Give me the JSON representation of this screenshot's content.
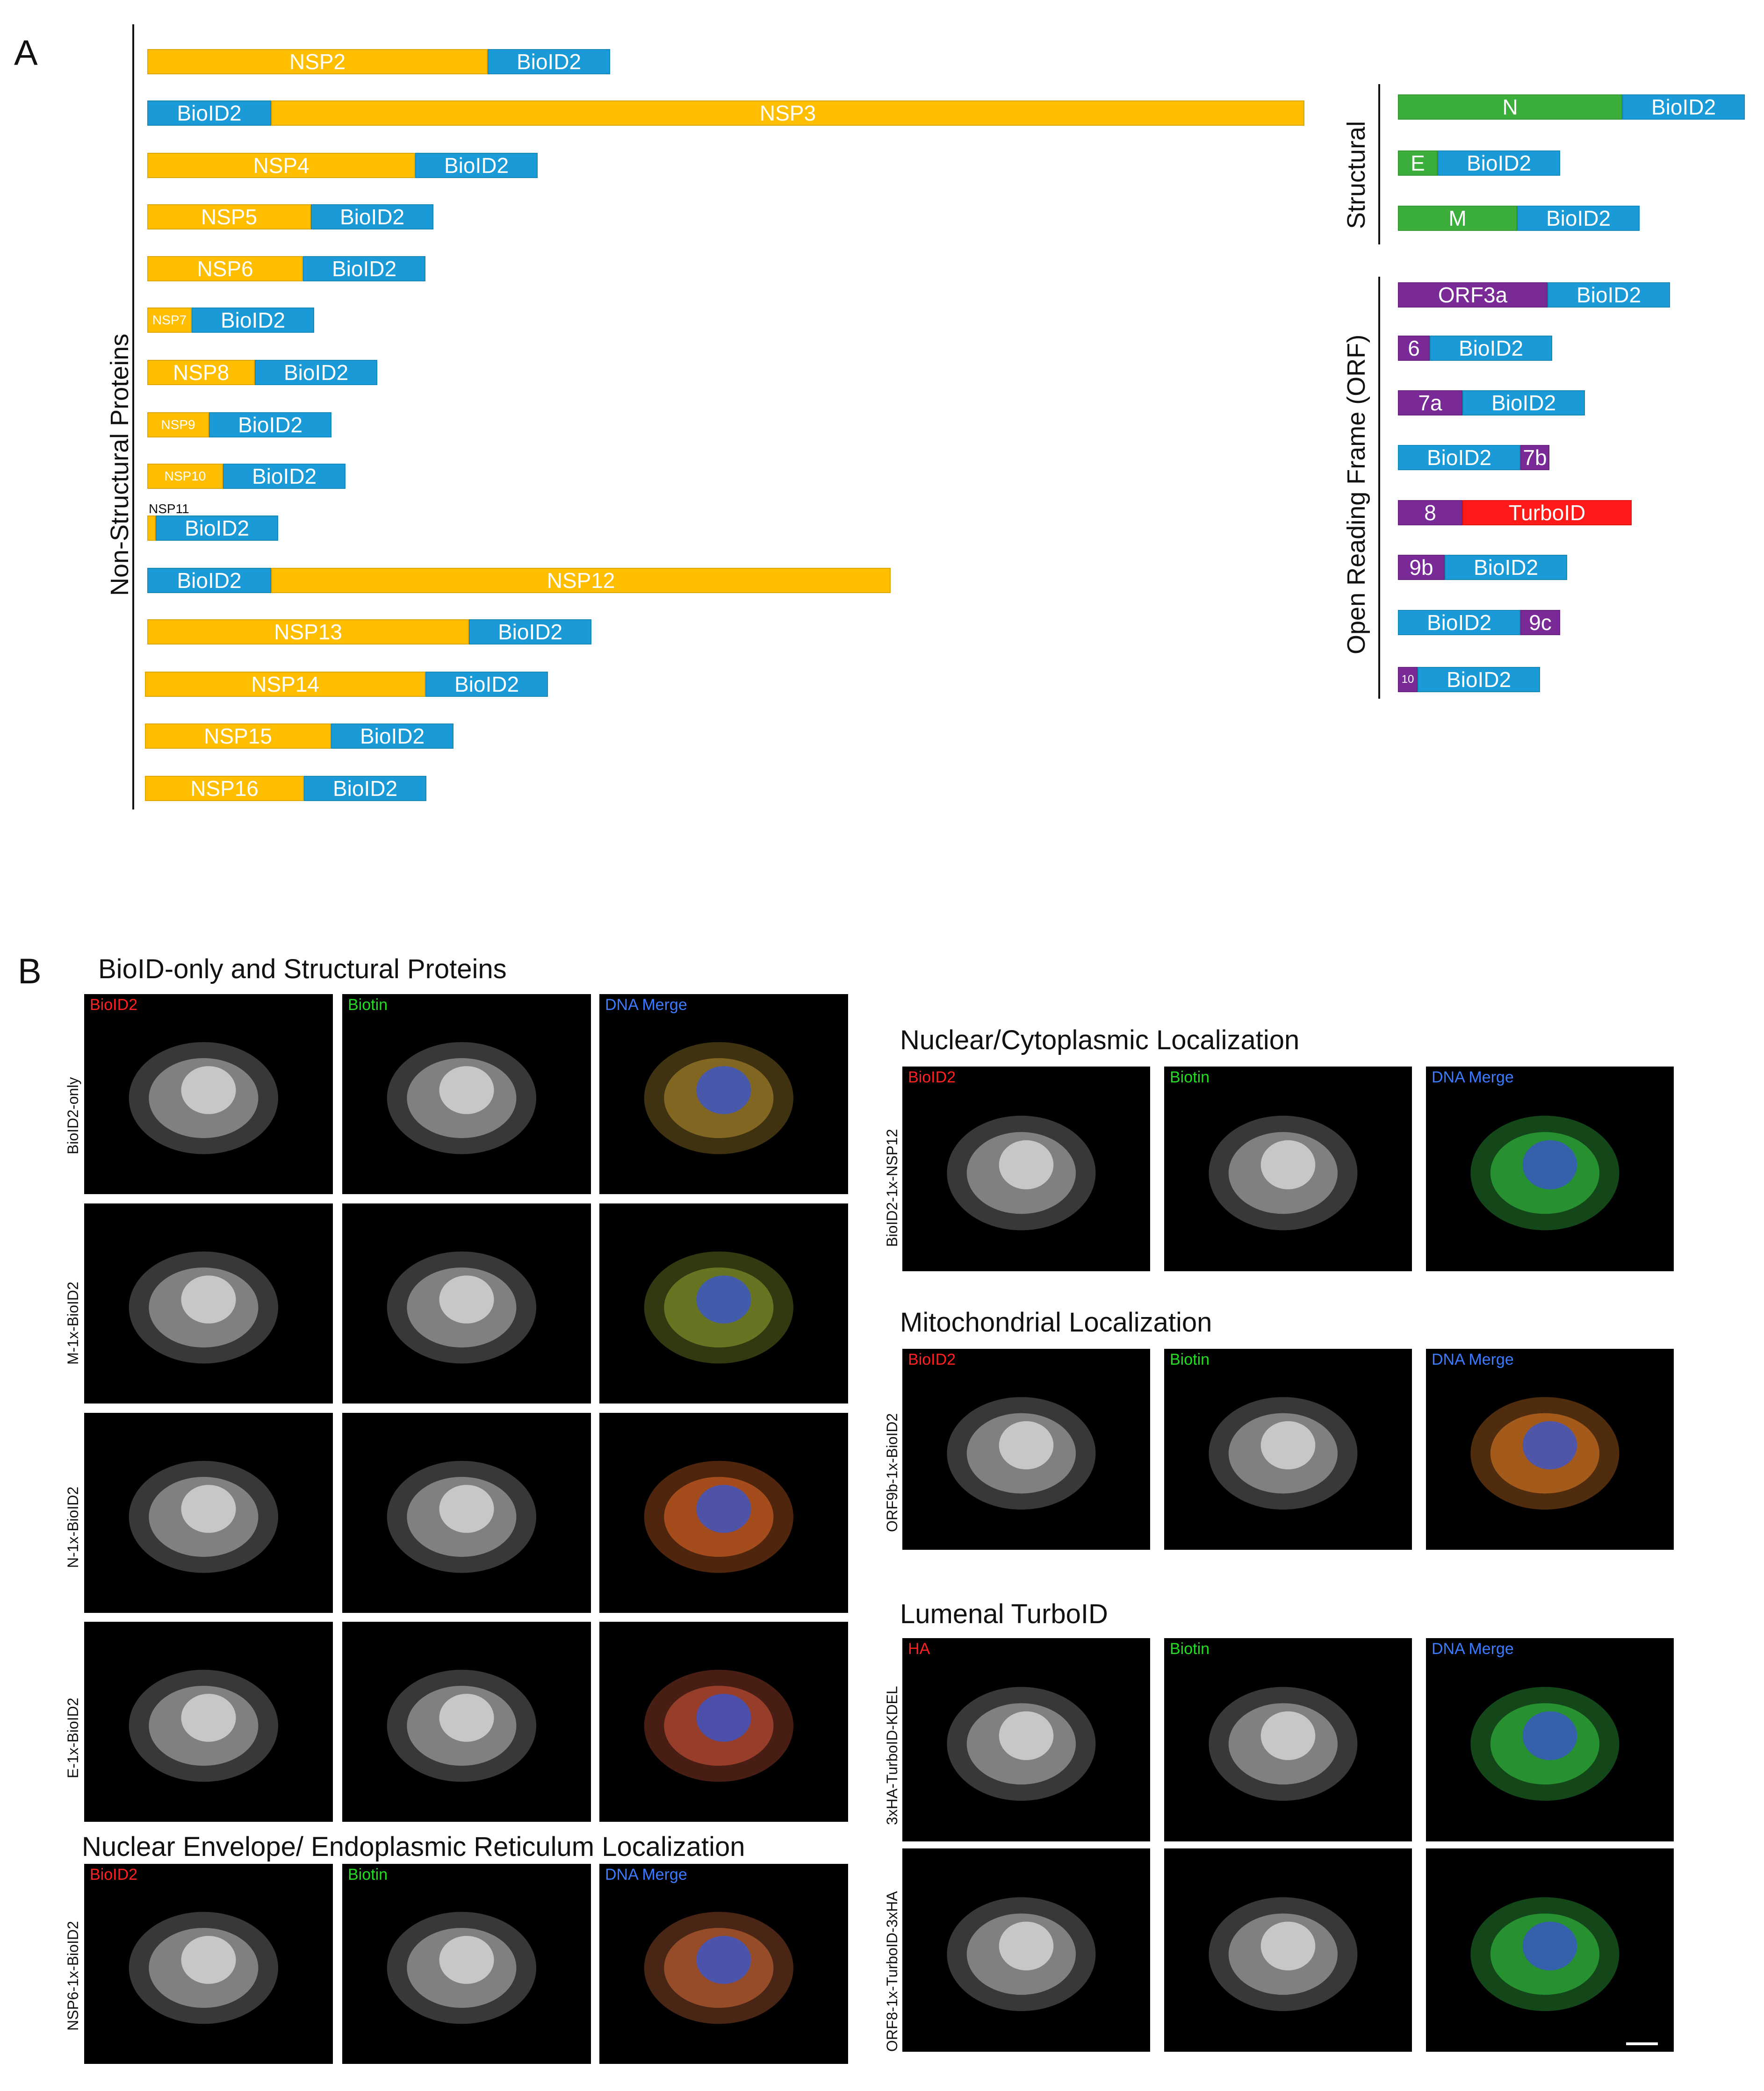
{
  "panel_a": {
    "letter": "A",
    "group_nonstructural": "Non-Structural Proteins",
    "group_structural": "Structural",
    "group_orf": "Open Reading Frame (ORF)",
    "nsp11_label": "NSP11",
    "nonstructural_constructs": [
      [
        "NSP2",
        "BioID2"
      ],
      [
        "BioID2",
        "NSP3"
      ],
      [
        "NSP4",
        "BioID2"
      ],
      [
        "NSP5",
        "BioID2"
      ],
      [
        "NSP6",
        "BioID2"
      ],
      [
        "NSP7",
        "BioID2"
      ],
      [
        "NSP8",
        "BioID2"
      ],
      [
        "NSP9",
        "BioID2"
      ],
      [
        "NSP10",
        "BioID2"
      ],
      [
        "",
        "BioID2"
      ],
      [
        "BioID2",
        "NSP12"
      ],
      [
        "NSP13",
        "BioID2"
      ],
      [
        "NSP14",
        "BioID2"
      ],
      [
        "NSP15",
        "BioID2"
      ],
      [
        "NSP16",
        "BioID2"
      ]
    ],
    "structural_constructs": [
      [
        "N",
        "BioID2"
      ],
      [
        "E",
        "BioID2"
      ],
      [
        "M",
        "BioID2"
      ]
    ],
    "orf_constructs": [
      [
        "ORF3a",
        "BioID2"
      ],
      [
        "6",
        "BioID2"
      ],
      [
        "7a",
        "BioID2"
      ],
      [
        "BioID2",
        "7b"
      ],
      [
        "8",
        "TurboID"
      ],
      [
        "9b",
        "BioID2"
      ],
      [
        "BioID2",
        "9c"
      ],
      [
        "10",
        "BioID2"
      ]
    ],
    "colors": {
      "nsp": "#ffbe00",
      "bioid2": "#1a9bd7",
      "structural": "#3cae3c",
      "orf": "#7a2a96",
      "turboid": "#ff1a1a"
    }
  },
  "panel_b": {
    "letter": "B",
    "heading_structural": "BioID-only and Structural Proteins",
    "heading_ne_er": "Nuclear Envelope/ Endoplasmic Reticulum Localization",
    "heading_nuc_cyto": "Nuclear/Cytoplasmic Localization",
    "heading_mito": "Mitochondrial Localization",
    "heading_lumenal": "Lumenal TurboID",
    "channel_bioid2": "BioID2",
    "channel_biotin": "Biotin",
    "channel_merge": "DNA Merge",
    "channel_ha": "HA",
    "row_labels": {
      "bioid2_only": "BioID2-only",
      "m": "M-1x-BioID2",
      "n": "N-1x-BioID2",
      "e": "E-1x-BioID2",
      "nsp6": "NSP6-1x-BioID2",
      "nsp12": "BioID2-1x-NSP12",
      "orf9b": "ORF9b-1x-BioID2",
      "kdel": "3xHA-TurboID-KDEL",
      "orf8": "ORF8-1x-TurboID-3xHA"
    },
    "channel_colors": {
      "red": "#ff2020",
      "green": "#22dd22",
      "blue": "#3a7bff"
    }
  }
}
